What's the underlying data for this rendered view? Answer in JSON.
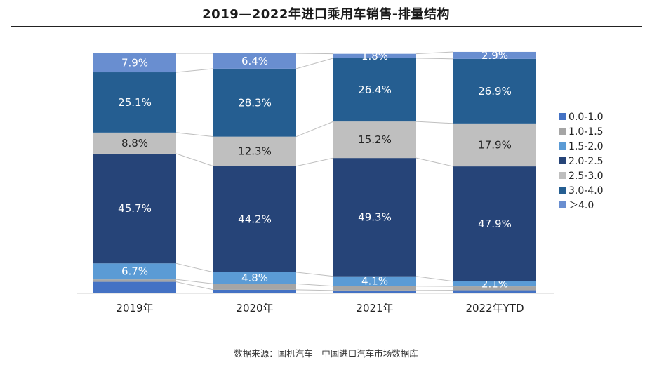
{
  "title": "2019—2022年进口乘用车销售-排量结构",
  "source": "数据来源：国机汽车—中国进口汽车市场数据库",
  "chart_data": {
    "type": "bar",
    "stacked": true,
    "percent": true,
    "categories": [
      "2019年",
      "2020年",
      "2021年",
      "2022年YTD"
    ],
    "series": [
      {
        "name": "0.0-1.0",
        "color": "#4472c4",
        "values": [
          4.8,
          1.5,
          1.2,
          1.3
        ],
        "labels": [
          "",
          "",
          "",
          ""
        ]
      },
      {
        "name": "1.0-1.5",
        "color": "#a5a5a5",
        "values": [
          1.0,
          2.5,
          1.8,
          1.6
        ],
        "labels": [
          "",
          "",
          "",
          ""
        ]
      },
      {
        "name": "1.5-2.0",
        "color": "#5b9bd5",
        "values": [
          6.7,
          4.8,
          4.1,
          2.1
        ],
        "labels": [
          "6.7%",
          "4.8%",
          "4.1%",
          "2.1%"
        ]
      },
      {
        "name": "2.0-2.5",
        "color": "#264478",
        "values": [
          45.7,
          44.2,
          49.3,
          47.9
        ],
        "labels": [
          "45.7%",
          "44.2%",
          "49.3%",
          "47.9%"
        ]
      },
      {
        "name": "2.5-3.0",
        "color": "#bfbfbf",
        "values": [
          8.8,
          12.3,
          15.2,
          17.9
        ],
        "labels": [
          "8.8%",
          "12.3%",
          "15.2%",
          "17.9%"
        ]
      },
      {
        "name": "3.0-4.0",
        "color": "#255e91",
        "values": [
          25.1,
          28.3,
          26.4,
          26.9
        ],
        "labels": [
          "25.1%",
          "28.3%",
          "26.4%",
          "26.9%"
        ]
      },
      {
        "name": "＞4.0",
        "color": "#698ed0",
        "values": [
          7.9,
          6.4,
          1.8,
          2.9
        ],
        "labels": [
          "7.9%",
          "6.4%",
          "1.8%",
          "2.9%"
        ]
      }
    ],
    "ylim": [
      0,
      100
    ],
    "legend": "right",
    "grid": false,
    "connector_lines": true
  }
}
